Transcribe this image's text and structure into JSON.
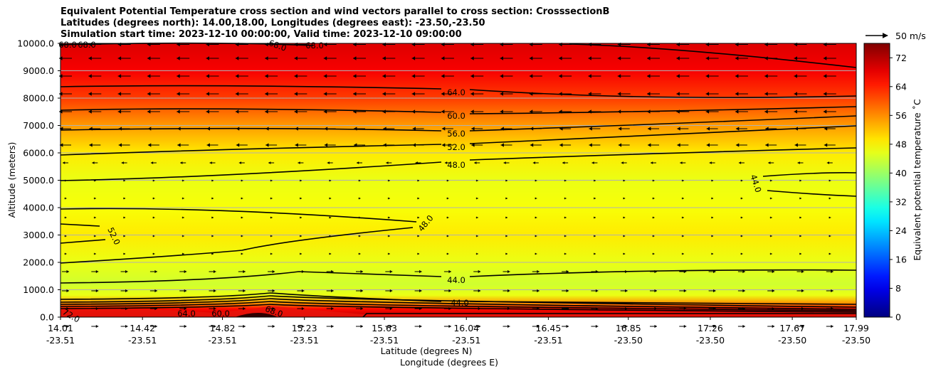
{
  "chart_data": {
    "type": "heatmap",
    "title_lines": [
      "Equivalent Potential Temperature cross section and wind vectors parallel to cross section: CrosssectionB",
      "Latitudes (degrees north): 14.00,18.00, Longitudes (degrees east): -23.50,-23.50",
      "Simulation start time: 2023-12-10 00:00:00, Valid time: 2023-12-10 09:00:00"
    ],
    "xlabel": "Latitude (degrees N)",
    "xlabel2": "Longitude (degrees E)",
    "ylabel": "Altitude (meters)",
    "x_ticks": [
      {
        "lat": "14.01",
        "lon": "-23.51"
      },
      {
        "lat": "14.42",
        "lon": "-23.51"
      },
      {
        "lat": "14.82",
        "lon": "-23.51"
      },
      {
        "lat": "15.23",
        "lon": "-23.51"
      },
      {
        "lat": "15.63",
        "lon": "-23.51"
      },
      {
        "lat": "16.04",
        "lon": "-23.51"
      },
      {
        "lat": "16.45",
        "lon": "-23.51"
      },
      {
        "lat": "16.85",
        "lon": "-23.50"
      },
      {
        "lat": "17.26",
        "lon": "-23.50"
      },
      {
        "lat": "17.67",
        "lon": "-23.50"
      },
      {
        "lat": "17.99",
        "lon": "-23.50"
      }
    ],
    "x_range": [
      14.01,
      17.99
    ],
    "y_ticks": [
      "0.0",
      "1000.0",
      "2000.0",
      "3000.0",
      "4000.0",
      "5000.0",
      "6000.0",
      "7000.0",
      "8000.0",
      "9000.0",
      "10000.0"
    ],
    "ylim": [
      0,
      10000
    ],
    "grid": "horizontal",
    "colorbar": {
      "label": "Equivalent potential temperature ˚C",
      "ticks": [
        "0",
        "8",
        "16",
        "24",
        "32",
        "40",
        "48",
        "56",
        "64",
        "72"
      ],
      "range": [
        0,
        76
      ],
      "colormap": "jet"
    },
    "wind_reference": "50 m/s",
    "contour_labels": [
      "64.0",
      "60.0",
      "56.0",
      "52.0",
      "48.0",
      "44.0",
      "52.0",
      "48.0",
      "44.0",
      "44.0",
      "68.0",
      "68.0",
      "68.0",
      "68.0",
      "64.0",
      "60.0",
      "68.0",
      "72.0"
    ],
    "field_profile": {
      "altitudes_m": [
        0,
        300,
        500,
        800,
        1200,
        2000,
        3000,
        4000,
        5000,
        6000,
        7000,
        8000,
        9000,
        10000
      ],
      "theta_e_C": [
        72,
        66,
        56,
        46,
        44,
        46,
        49,
        47,
        46,
        49,
        55,
        62,
        67,
        69
      ]
    }
  }
}
